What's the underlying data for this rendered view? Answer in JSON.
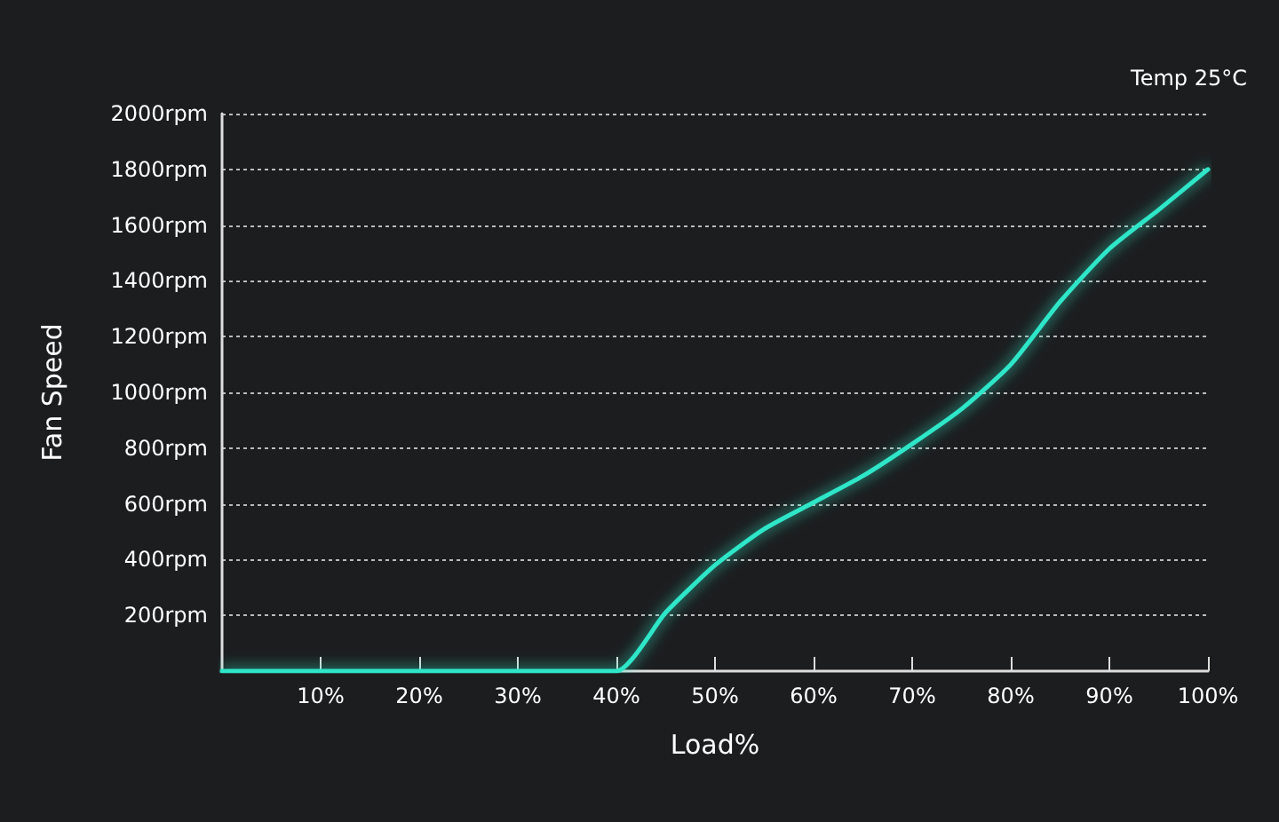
{
  "chart_data": {
    "type": "line",
    "xlabel": "Load%",
    "ylabel": "Fan Speed",
    "annotations": [
      "Temp 25°C"
    ],
    "x": [
      0,
      10,
      20,
      30,
      40,
      45,
      50,
      55,
      60,
      65,
      70,
      75,
      80,
      85,
      90,
      95,
      100
    ],
    "series": [
      {
        "color": "#2ee6c8",
        "values": [
          0,
          0,
          0,
          0,
          0,
          210,
          380,
          510,
          605,
          700,
          815,
          940,
          1100,
          1325,
          1515,
          1655,
          1800
        ]
      }
    ],
    "xlim": [
      0,
      100
    ],
    "xticks": [
      {
        "value": 10,
        "label": "10%"
      },
      {
        "value": 20,
        "label": "20%"
      },
      {
        "value": 30,
        "label": "30%"
      },
      {
        "value": 40,
        "label": "40%"
      },
      {
        "value": 50,
        "label": "50%"
      },
      {
        "value": 60,
        "label": "60%"
      },
      {
        "value": 70,
        "label": "70%"
      },
      {
        "value": 80,
        "label": "80%"
      },
      {
        "value": 90,
        "label": "90%"
      },
      {
        "value": 100,
        "label": "100%"
      }
    ],
    "ylim": [
      0,
      2000
    ],
    "yticks": [
      {
        "value": 200,
        "label": "200rpm"
      },
      {
        "value": 400,
        "label": "400rpm"
      },
      {
        "value": 600,
        "label": "600rpm"
      },
      {
        "value": 800,
        "label": "800rpm"
      },
      {
        "value": 1000,
        "label": "1000rpm"
      },
      {
        "value": 1200,
        "label": "1200rpm"
      },
      {
        "value": 1400,
        "label": "1400rpm"
      },
      {
        "value": 1600,
        "label": "1600rpm"
      },
      {
        "value": 1800,
        "label": "1800rpm"
      },
      {
        "value": 2000,
        "label": "2000rpm"
      }
    ],
    "grid": "y",
    "marker": "none",
    "line_style": "solid"
  }
}
